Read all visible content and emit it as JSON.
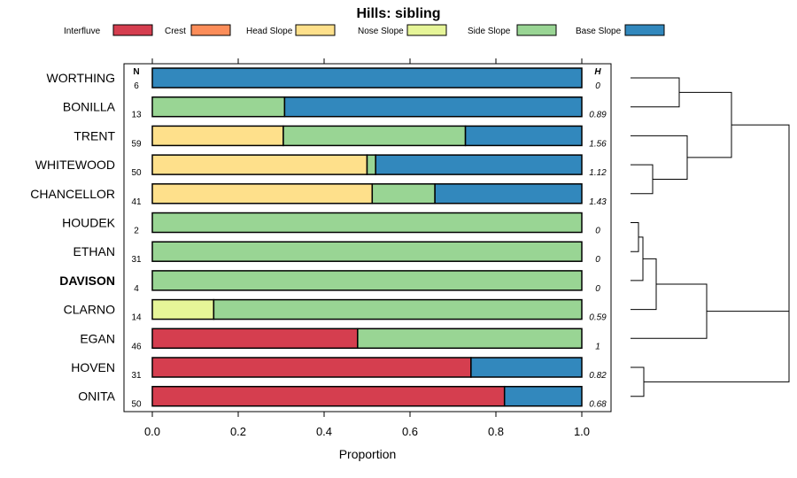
{
  "chart_data": {
    "type": "bar",
    "stacked": true,
    "orientation": "horizontal",
    "title": "Hills: sibling",
    "xlabel": "Proportion",
    "xlim": [
      0,
      1
    ],
    "xticks": [
      {
        "value": 0.0,
        "label": "0.0"
      },
      {
        "value": 0.2,
        "label": "0.2"
      },
      {
        "value": 0.4,
        "label": "0.4"
      },
      {
        "value": 0.6,
        "label": "0.6"
      },
      {
        "value": 0.8,
        "label": "0.8"
      },
      {
        "value": 1.0,
        "label": "1.0"
      }
    ],
    "n_header": "N",
    "h_header": "H",
    "highlight": "DAVISON",
    "legend": [
      {
        "name": "Interfluve",
        "color": "#d53e4f"
      },
      {
        "name": "Crest",
        "color": "#fc8d59"
      },
      {
        "name": "Head Slope",
        "color": "#fee08b"
      },
      {
        "name": "Nose Slope",
        "color": "#e6f598"
      },
      {
        "name": "Side Slope",
        "color": "#99d594"
      },
      {
        "name": "Base Slope",
        "color": "#3288bd"
      }
    ],
    "rows": [
      {
        "name": "WORTHING",
        "n": "6",
        "h": "0",
        "segments": [
          [
            "Base Slope",
            1.0
          ]
        ]
      },
      {
        "name": "BONILLA",
        "n": "13",
        "h": "0.89",
        "segments": [
          [
            "Side Slope",
            0.308
          ],
          [
            "Base Slope",
            0.692
          ]
        ]
      },
      {
        "name": "TRENT",
        "n": "59",
        "h": "1.56",
        "segments": [
          [
            "Head Slope",
            0.305
          ],
          [
            "Side Slope",
            0.424
          ],
          [
            "Base Slope",
            0.271
          ]
        ]
      },
      {
        "name": "WHITEWOOD",
        "n": "50",
        "h": "1.12",
        "segments": [
          [
            "Head Slope",
            0.5
          ],
          [
            "Side Slope",
            0.02
          ],
          [
            "Base Slope",
            0.48
          ]
        ]
      },
      {
        "name": "CHANCELLOR",
        "n": "41",
        "h": "1.43",
        "segments": [
          [
            "Head Slope",
            0.512
          ],
          [
            "Side Slope",
            0.146
          ],
          [
            "Base Slope",
            0.342
          ]
        ]
      },
      {
        "name": "HOUDEK",
        "n": "2",
        "h": "0",
        "segments": [
          [
            "Side Slope",
            1.0
          ]
        ]
      },
      {
        "name": "ETHAN",
        "n": "31",
        "h": "0",
        "segments": [
          [
            "Side Slope",
            1.0
          ]
        ]
      },
      {
        "name": "DAVISON",
        "n": "4",
        "h": "0",
        "segments": [
          [
            "Side Slope",
            1.0
          ]
        ]
      },
      {
        "name": "CLARNO",
        "n": "14",
        "h": "0.59",
        "segments": [
          [
            "Nose Slope",
            0.143
          ],
          [
            "Side Slope",
            0.857
          ]
        ]
      },
      {
        "name": "EGAN",
        "n": "46",
        "h": "1",
        "segments": [
          [
            "Interfluve",
            0.478
          ],
          [
            "Side Slope",
            0.522
          ]
        ]
      },
      {
        "name": "HOVEN",
        "n": "31",
        "h": "0.82",
        "segments": [
          [
            "Interfluve",
            0.742
          ],
          [
            "Base Slope",
            0.258
          ]
        ]
      },
      {
        "name": "ONITA",
        "n": "50",
        "h": "0.68",
        "segments": [
          [
            "Interfluve",
            0.82
          ],
          [
            "Base Slope",
            0.18
          ]
        ]
      }
    ]
  }
}
